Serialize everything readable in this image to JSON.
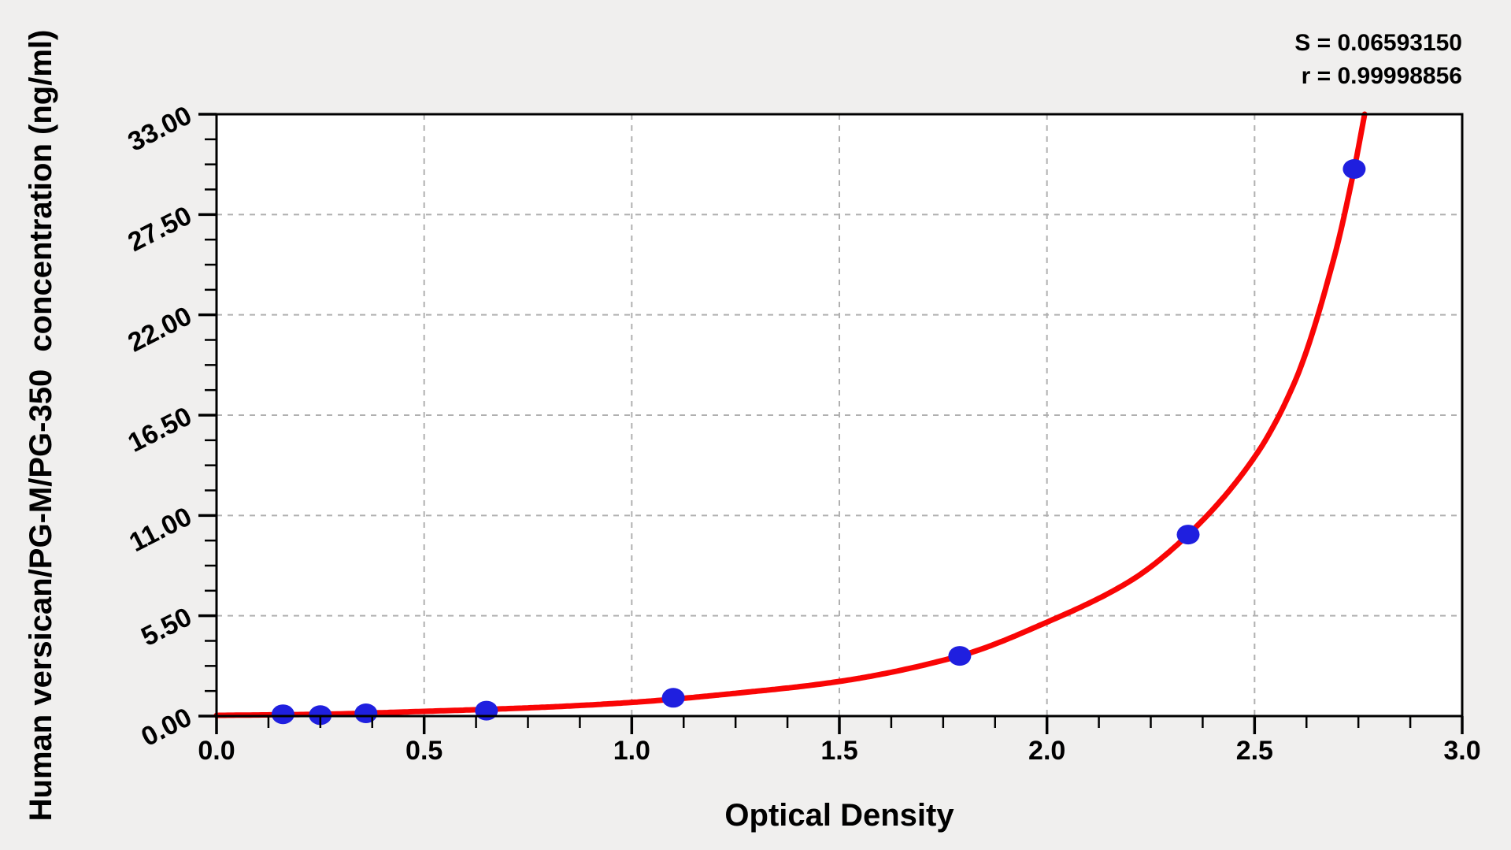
{
  "chart_data": {
    "type": "scatter",
    "title": "",
    "xlabel": "Optical Density",
    "ylabel": "Human versican/PG-M/PG-350  concentration (ng/ml)",
    "xlim": [
      0.0,
      3.0
    ],
    "ylim": [
      0.0,
      33.0
    ],
    "x_ticks": [
      0.0,
      0.5,
      1.0,
      1.5,
      2.0,
      2.5,
      3.0
    ],
    "x_tick_labels": [
      "0.0",
      "0.5",
      "1.0",
      "1.5",
      "2.0",
      "2.5",
      "3.0"
    ],
    "x_minor_tick_step": 0.125,
    "y_ticks": [
      0.0,
      5.5,
      11.0,
      16.5,
      22.0,
      27.5,
      33.0
    ],
    "y_tick_labels": [
      "0.00",
      "5.50",
      "11.00",
      "16.50",
      "22.00",
      "27.50",
      "33.00"
    ],
    "y_minor_tick_step": 1.375,
    "grid": "dashed-at-major-ticks",
    "legend": "none",
    "annotations": [
      "S = 0.06593150",
      "r = 0.99998856"
    ],
    "series": [
      {
        "name": "standard-points",
        "type": "scatter",
        "color": "#1f1fdf",
        "points": [
          [
            0.16,
            0.1
          ],
          [
            0.25,
            0.05
          ],
          [
            0.36,
            0.15
          ],
          [
            0.65,
            0.3
          ],
          [
            1.1,
            1.0
          ],
          [
            1.79,
            3.3
          ],
          [
            2.34,
            9.95
          ],
          [
            2.74,
            30.0
          ]
        ]
      },
      {
        "name": "fitted-curve",
        "type": "line",
        "color": "#f90505",
        "points": [
          [
            0.0,
            0.04
          ],
          [
            0.25,
            0.1
          ],
          [
            0.5,
            0.26
          ],
          [
            0.75,
            0.45
          ],
          [
            1.0,
            0.75
          ],
          [
            1.25,
            1.25
          ],
          [
            1.5,
            1.9
          ],
          [
            1.79,
            3.3
          ],
          [
            2.0,
            5.15
          ],
          [
            2.2,
            7.4
          ],
          [
            2.34,
            9.95
          ],
          [
            2.5,
            14.2
          ],
          [
            2.6,
            18.5
          ],
          [
            2.69,
            25.0
          ],
          [
            2.74,
            30.0
          ],
          [
            2.765,
            33.0
          ]
        ]
      }
    ]
  },
  "colors": {
    "background": "#f0efee",
    "plot_background": "#ffffff",
    "axis": "#000000",
    "grid": "#b0b0b0",
    "curve": "#f90505",
    "points": "#1f1fdf"
  }
}
